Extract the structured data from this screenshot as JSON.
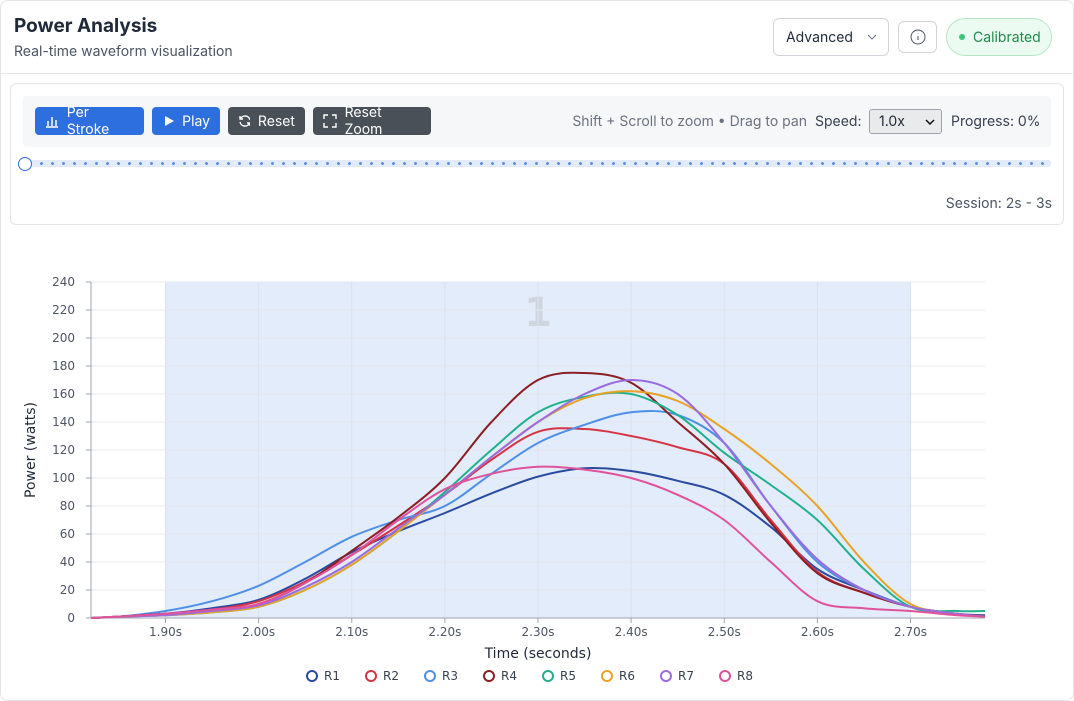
{
  "header": {
    "title": "Power Analysis",
    "subtitle": "Real-time waveform visualization",
    "mode": "Advanced",
    "status": "Calibrated"
  },
  "toolbar": {
    "buttons": [
      "Per Stroke",
      "Play",
      "Reset",
      "Reset Zoom"
    ],
    "hint": "Shift + Scroll to zoom • Drag to pan",
    "speed_label": "Speed:",
    "speed": "1.0x",
    "progress": "Progress: 0%"
  },
  "session": "Session: 2s - 3s",
  "chart_data": {
    "type": "line",
    "x_label": "Time (seconds)",
    "y_label": "Power (watts)",
    "grid": true,
    "smooth": true,
    "legend": "bottom",
    "xlim": [
      1.82,
      2.78
    ],
    "ylim": [
      0,
      240
    ],
    "yticks": [
      0,
      20,
      40,
      60,
      80,
      100,
      120,
      140,
      160,
      180,
      200,
      220,
      240
    ],
    "xticks": [
      {
        "value": 1.9,
        "label": "1.90s"
      },
      {
        "value": 2.0,
        "label": "2.00s"
      },
      {
        "value": 2.1,
        "label": "2.10s"
      },
      {
        "value": 2.2,
        "label": "2.20s"
      },
      {
        "value": 2.3,
        "label": "2.30s"
      },
      {
        "value": 2.4,
        "label": "2.40s"
      },
      {
        "value": 2.5,
        "label": "2.50s"
      },
      {
        "value": 2.6,
        "label": "2.60s"
      },
      {
        "value": 2.7,
        "label": "2.70s"
      }
    ],
    "strokes": [
      {
        "start": 1.9,
        "end": 2.7,
        "label": "1"
      }
    ],
    "x": [
      1.82,
      1.85,
      1.9,
      1.95,
      2.0,
      2.05,
      2.1,
      2.15,
      2.2,
      2.25,
      2.3,
      2.35,
      2.4,
      2.45,
      2.5,
      2.55,
      2.6,
      2.65,
      2.7,
      2.75,
      2.78
    ],
    "series": [
      {
        "name": "R1",
        "color": "#2a4ba0",
        "values": [
          0,
          1,
          3,
          7,
          13,
          28,
          47,
          62,
          75,
          89,
          101,
          107,
          105,
          98,
          88,
          65,
          35,
          20,
          8,
          3,
          2
        ]
      },
      {
        "name": "R2",
        "color": "#d63343",
        "values": [
          0,
          1,
          3,
          6,
          12,
          26,
          45,
          66,
          88,
          113,
          133,
          135,
          130,
          122,
          110,
          70,
          33,
          18,
          8,
          3,
          1
        ]
      },
      {
        "name": "R3",
        "color": "#4e8fe8",
        "values": [
          0,
          1,
          5,
          12,
          23,
          40,
          58,
          70,
          80,
          103,
          125,
          138,
          147,
          145,
          125,
          80,
          40,
          20,
          8,
          3,
          1
        ]
      },
      {
        "name": "R4",
        "color": "#8b1f24",
        "values": [
          0,
          1,
          3,
          5,
          10,
          25,
          48,
          72,
          100,
          140,
          170,
          175,
          168,
          140,
          110,
          68,
          32,
          18,
          8,
          3,
          1
        ]
      },
      {
        "name": "R5",
        "color": "#22b08c",
        "values": [
          0,
          1,
          2,
          4,
          8,
          20,
          38,
          62,
          90,
          120,
          147,
          158,
          160,
          145,
          118,
          95,
          70,
          35,
          8,
          5,
          5
        ]
      },
      {
        "name": "R6",
        "color": "#e8a325",
        "values": [
          0,
          1,
          2,
          4,
          8,
          20,
          38,
          62,
          88,
          115,
          140,
          157,
          162,
          155,
          135,
          110,
          80,
          40,
          10,
          3,
          1
        ]
      },
      {
        "name": "R7",
        "color": "#9b6be0",
        "values": [
          0,
          1,
          2,
          5,
          9,
          22,
          40,
          64,
          88,
          115,
          140,
          160,
          170,
          160,
          125,
          80,
          42,
          20,
          8,
          3,
          1
        ]
      },
      {
        "name": "R8",
        "color": "#e0529c",
        "values": [
          0,
          1,
          3,
          6,
          10,
          25,
          45,
          70,
          92,
          103,
          108,
          106,
          100,
          88,
          70,
          40,
          12,
          7,
          5,
          2,
          1
        ]
      }
    ]
  }
}
